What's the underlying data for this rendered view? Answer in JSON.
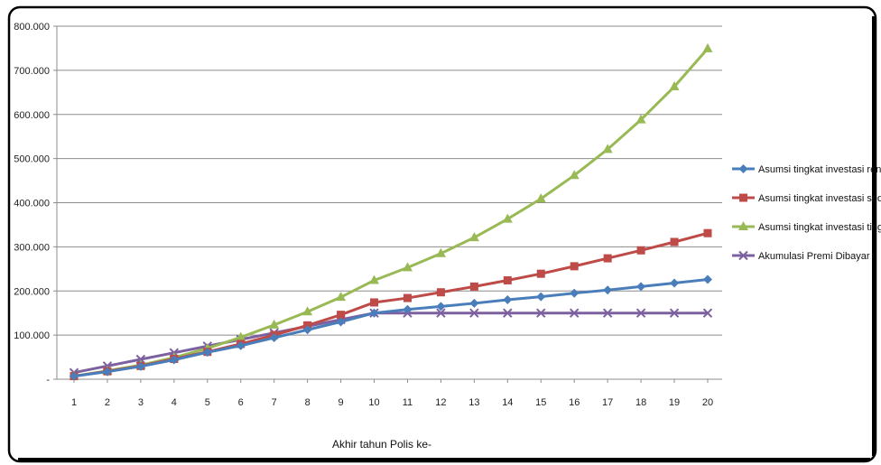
{
  "chart_data": {
    "type": "line",
    "x": [
      1,
      2,
      3,
      4,
      5,
      6,
      7,
      8,
      9,
      10,
      11,
      12,
      13,
      14,
      15,
      16,
      17,
      18,
      19,
      20
    ],
    "x_tick_labels": [
      "1",
      "2",
      "3",
      "4",
      "5",
      "6",
      "7",
      "8",
      "9",
      "10",
      "11",
      "12",
      "13",
      "14",
      "15",
      "16",
      "17",
      "18",
      "19",
      "20"
    ],
    "y_tick_labels": [
      "-",
      "100.000",
      "200.000",
      "300.000",
      "400.000",
      "500.000",
      "600.000",
      "700.000",
      "800.000"
    ],
    "ylim": [
      0,
      800000
    ],
    "xlabel": "Akhir tahun Polis ke-",
    "ylabel": "",
    "title": "",
    "grid": true,
    "legend_position": "right",
    "series": [
      {
        "name": "Asumsi tingkat investasi rendah",
        "color": "#4a7ebb",
        "marker": "diamond",
        "values": [
          7000,
          17000,
          29000,
          44000,
          61000,
          76000,
          94000,
          112000,
          130000,
          150000,
          158000,
          165000,
          172000,
          180000,
          187000,
          195000,
          202000,
          210000,
          218000,
          226000
        ]
      },
      {
        "name": "Asumsi tingkat investasi sedang",
        "color": "#be4b48",
        "marker": "square",
        "values": [
          7000,
          18000,
          30000,
          46000,
          62000,
          80000,
          100000,
          122000,
          146000,
          174000,
          184000,
          197000,
          210000,
          224000,
          239000,
          256000,
          274000,
          292000,
          311000,
          331000
        ]
      },
      {
        "name": "Asumsi tingkat investasi tinggi",
        "color": "#98b954",
        "marker": "triangle",
        "values": [
          7000,
          19000,
          32000,
          49000,
          70000,
          95000,
          123000,
          153000,
          186000,
          224000,
          253000,
          285000,
          321000,
          363000,
          409000,
          462000,
          521000,
          588000,
          663000,
          749000
        ]
      },
      {
        "name": "Akumulasi Premi Dibayar",
        "color": "#7d60a0",
        "marker": "x",
        "values": [
          15000,
          30000,
          45000,
          60000,
          75000,
          90000,
          105000,
          120000,
          135000,
          150000,
          150000,
          150000,
          150000,
          150000,
          150000,
          150000,
          150000,
          150000,
          150000,
          150000
        ]
      }
    ]
  }
}
